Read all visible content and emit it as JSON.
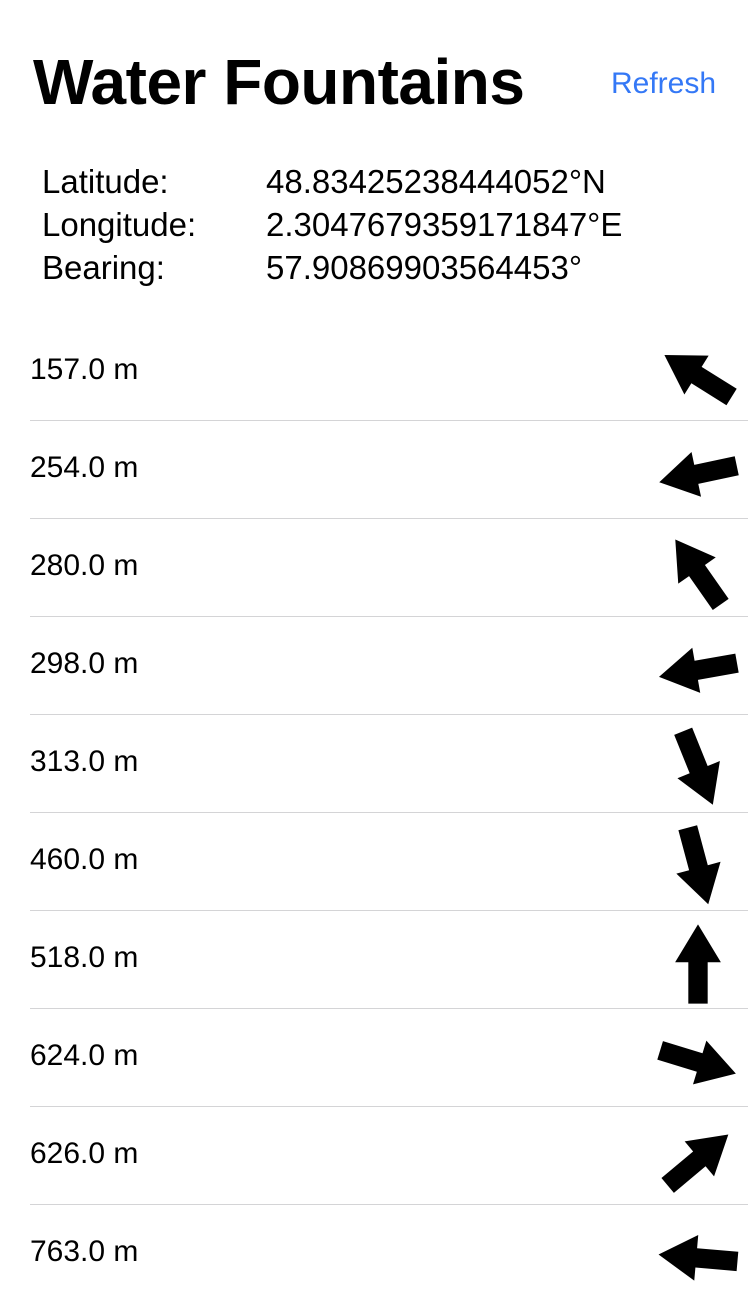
{
  "header": {
    "title": "Water Fountains",
    "refresh_label": "Refresh"
  },
  "location": {
    "latitude_label": "Latitude:",
    "latitude_value": "48.83425238444052°N",
    "longitude_label": "Longitude:",
    "longitude_value": "2.3047679359171847°E",
    "bearing_label": "Bearing:",
    "bearing_value": "57.90869903564453°"
  },
  "fountains": [
    {
      "distance": "157.0 m",
      "arrow_icon": "arrow-up-left-icon",
      "arrow_angle_deg": -58
    },
    {
      "distance": "254.0 m",
      "arrow_icon": "arrow-left-icon",
      "arrow_angle_deg": -102
    },
    {
      "distance": "280.0 m",
      "arrow_icon": "arrow-up-left-icon",
      "arrow_angle_deg": -35
    },
    {
      "distance": "298.0 m",
      "arrow_icon": "arrow-left-icon",
      "arrow_angle_deg": -100
    },
    {
      "distance": "313.0 m",
      "arrow_icon": "arrow-down-right-icon",
      "arrow_angle_deg": 158
    },
    {
      "distance": "460.0 m",
      "arrow_icon": "arrow-down-icon",
      "arrow_angle_deg": 165
    },
    {
      "distance": "518.0 m",
      "arrow_icon": "arrow-up-icon",
      "arrow_angle_deg": 0
    },
    {
      "distance": "624.0 m",
      "arrow_icon": "arrow-right-icon",
      "arrow_angle_deg": 107
    },
    {
      "distance": "626.0 m",
      "arrow_icon": "arrow-up-right-icon",
      "arrow_angle_deg": 50
    },
    {
      "distance": "763.0 m",
      "arrow_icon": "arrow-left-icon",
      "arrow_angle_deg": -85
    }
  ],
  "colors": {
    "accent": "#3478f6",
    "text": "#000000",
    "divider": "#d4d4d6",
    "background": "#ffffff"
  }
}
